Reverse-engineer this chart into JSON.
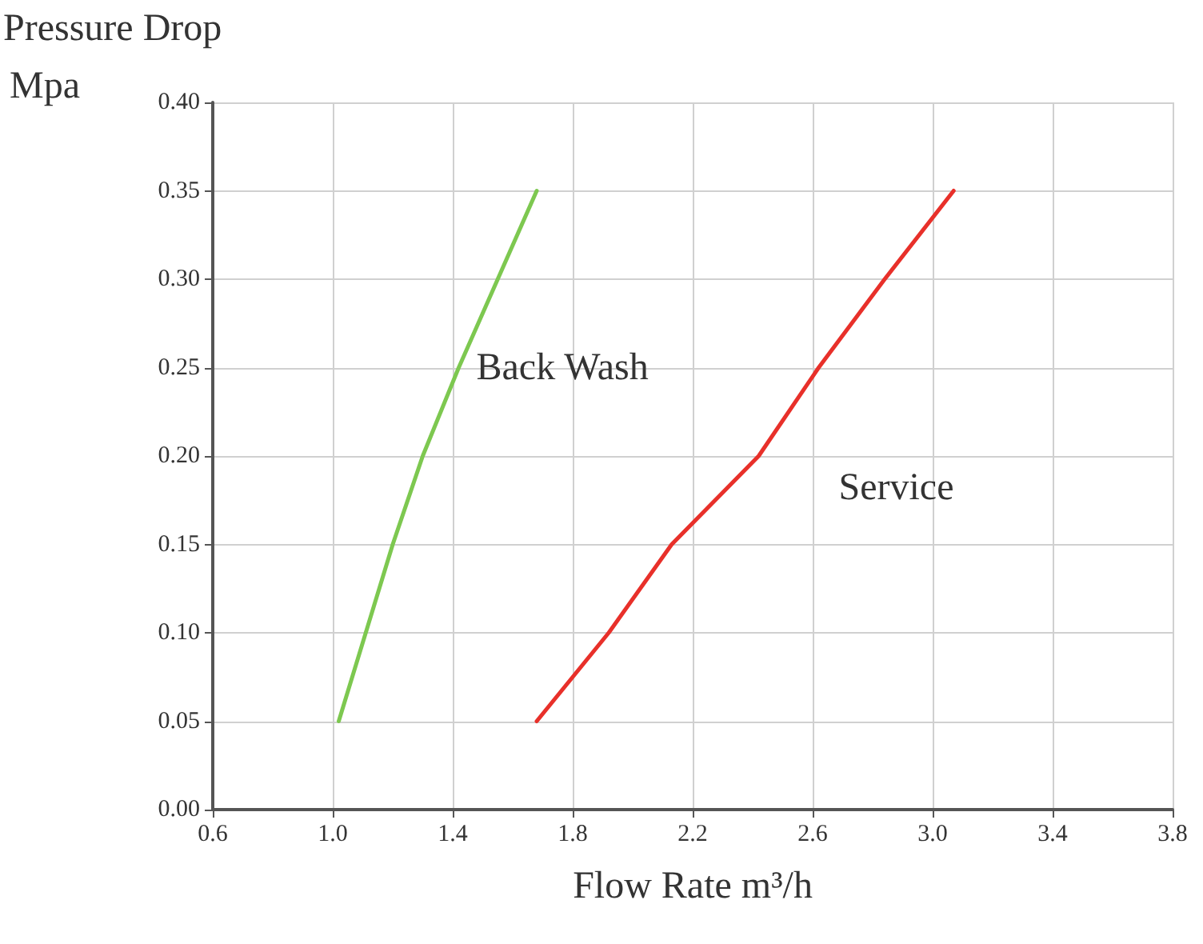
{
  "chart_data": {
    "type": "line",
    "xlabel": "Flow Rate m³/h",
    "ylabel": "Pressure Drop\nMpa",
    "grid": true,
    "marker": "none",
    "line_style": "solid",
    "xlim": [
      0.6,
      3.8
    ],
    "ylim": [
      0,
      0.4
    ],
    "xticks": [
      {
        "value": 0.6,
        "label": "0.6"
      },
      {
        "value": 1.0,
        "label": "1.0"
      },
      {
        "value": 1.4,
        "label": "1.4"
      },
      {
        "value": 1.8,
        "label": "1.8"
      },
      {
        "value": 2.2,
        "label": "2.2"
      },
      {
        "value": 2.6,
        "label": "2.6"
      },
      {
        "value": 3.0,
        "label": "3.0"
      },
      {
        "value": 3.4,
        "label": "3.4"
      },
      {
        "value": 3.8,
        "label": "3.8"
      }
    ],
    "yticks": [
      {
        "value": 0,
        "label": "0.00"
      },
      {
        "value": 0.05,
        "label": "0.05"
      },
      {
        "value": 0.1,
        "label": "0.10"
      },
      {
        "value": 0.15,
        "label": "0.15"
      },
      {
        "value": 0.2,
        "label": "0.20"
      },
      {
        "value": 0.25,
        "label": "0.25"
      },
      {
        "value": 0.3,
        "label": "0.30"
      },
      {
        "value": 0.35,
        "label": "0.35"
      },
      {
        "value": 0.4,
        "label": "0.40"
      }
    ],
    "series": [
      {
        "name": "Back Wash",
        "color": "#7dc850",
        "x": [
          1.02,
          1.2,
          1.3,
          1.42,
          1.55,
          1.68
        ],
        "values": [
          0.05,
          0.15,
          0.2,
          0.25,
          0.3,
          0.35
        ]
      },
      {
        "name": "Service",
        "color": "#e8302a",
        "x": [
          1.68,
          1.92,
          2.13,
          2.42,
          2.62,
          2.84,
          3.07
        ],
        "values": [
          0.05,
          0.1,
          0.15,
          0.2,
          0.25,
          0.3,
          0.35
        ]
      }
    ]
  }
}
